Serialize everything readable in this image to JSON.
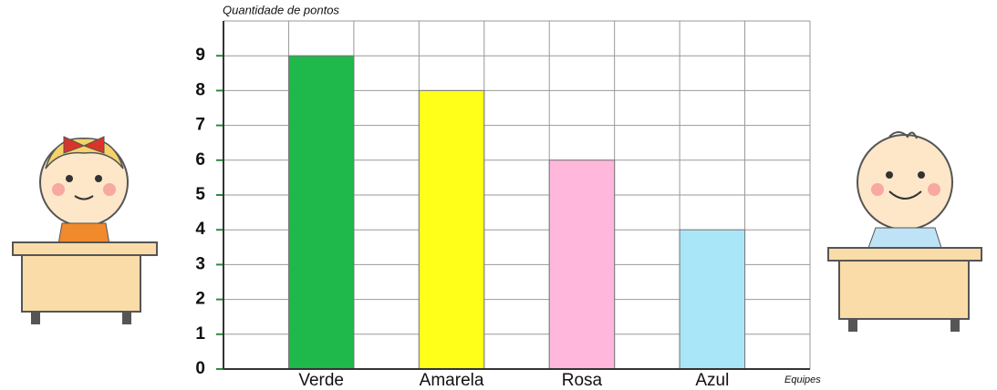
{
  "chart_data": {
    "type": "bar",
    "y_label": "Quantidade de pontos",
    "x_label": "Equipes",
    "categories": [
      "Verde",
      "Amarela",
      "Rosa",
      "Azul"
    ],
    "values": [
      9,
      8,
      6,
      4
    ],
    "colors": [
      "#1fb84a",
      "#ffff1a",
      "#ffb8dc",
      "#a9e6f7"
    ],
    "ylim": [
      0,
      10
    ],
    "yticks": [
      0,
      1,
      2,
      3,
      4,
      5,
      6,
      7,
      8,
      9
    ],
    "grid": true
  }
}
